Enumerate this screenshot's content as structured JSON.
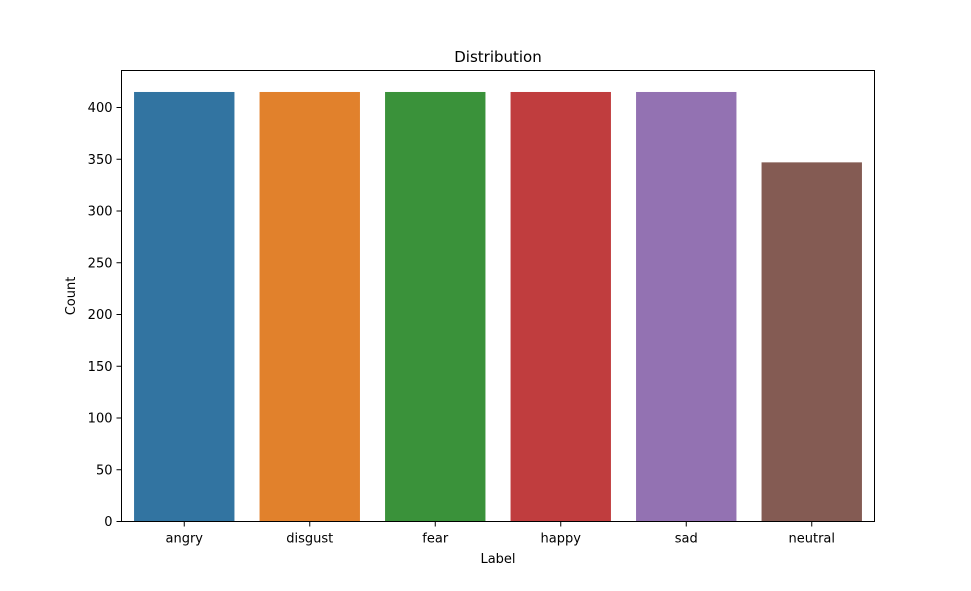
{
  "chart_data": {
    "type": "bar",
    "title": "Distribution",
    "xlabel": "Label",
    "ylabel": "Count",
    "categories": [
      "angry",
      "disgust",
      "fear",
      "happy",
      "sad",
      "neutral"
    ],
    "values": [
      415,
      415,
      415,
      415,
      415,
      347
    ],
    "colors": [
      "#3274a1",
      "#e1812c",
      "#3a923a",
      "#c03d3e",
      "#9372b2",
      "#845b53"
    ],
    "ylim": [
      0,
      435.75
    ],
    "yticks": [
      0,
      50,
      100,
      150,
      200,
      250,
      300,
      350,
      400
    ],
    "grid": false,
    "legend": "none"
  }
}
